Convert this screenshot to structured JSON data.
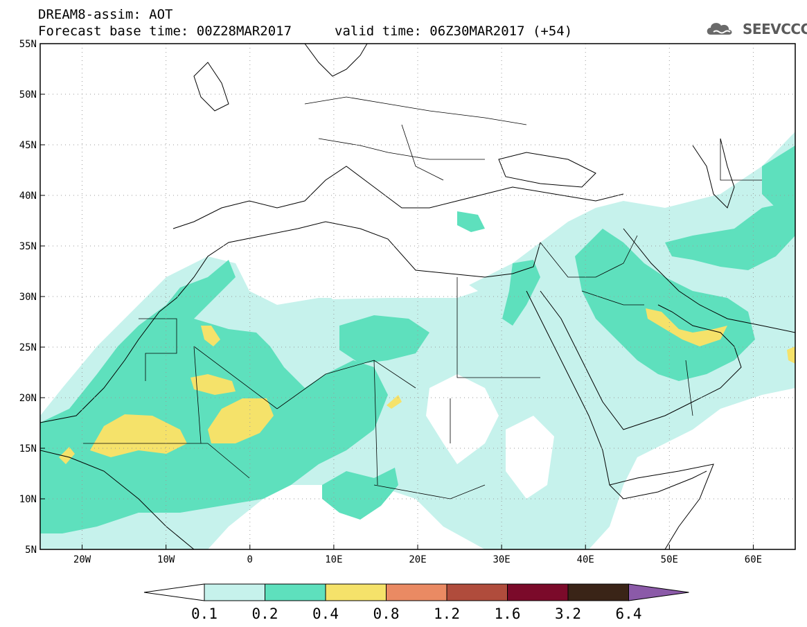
{
  "header": {
    "model_line": "DREAM8-assim: AOT",
    "base_time_line": "Forecast base time: 00Z28MAR2017",
    "valid_time_line": "valid time: 06Z30MAR2017 (+54)",
    "logo_text": "SEEVCCC"
  },
  "map": {
    "lon_range": [
      -25,
      65
    ],
    "lat_range": [
      5,
      55
    ],
    "lat_ticks": [
      "5N",
      "10N",
      "15N",
      "20N",
      "25N",
      "30N",
      "35N",
      "40N",
      "45N",
      "50N",
      "55N"
    ],
    "lon_ticks": [
      "20W",
      "10W",
      "0",
      "10E",
      "20E",
      "30E",
      "40E",
      "50E",
      "60E"
    ],
    "lat_values": [
      5,
      10,
      15,
      20,
      25,
      30,
      35,
      40,
      45,
      50,
      55
    ],
    "lon_values": [
      -20,
      -10,
      0,
      10,
      20,
      30,
      40,
      50,
      60
    ],
    "grid": "dotted"
  },
  "colorbar": {
    "labels": [
      "0.1",
      "0.2",
      "0.4",
      "0.8",
      "1.2",
      "1.6",
      "3.2",
      "6.4"
    ],
    "colors": [
      "#c6f2ec",
      "#5ee0bd",
      "#f5e26a",
      "#ea8a63",
      "#b04c3c",
      "#7b0a2a",
      "#3a2417",
      "#8b5aa8"
    ]
  },
  "colors": {
    "aot_01": "#c6f2ec",
    "aot_02": "#5ee0bd",
    "aot_04": "#f5e26a"
  }
}
